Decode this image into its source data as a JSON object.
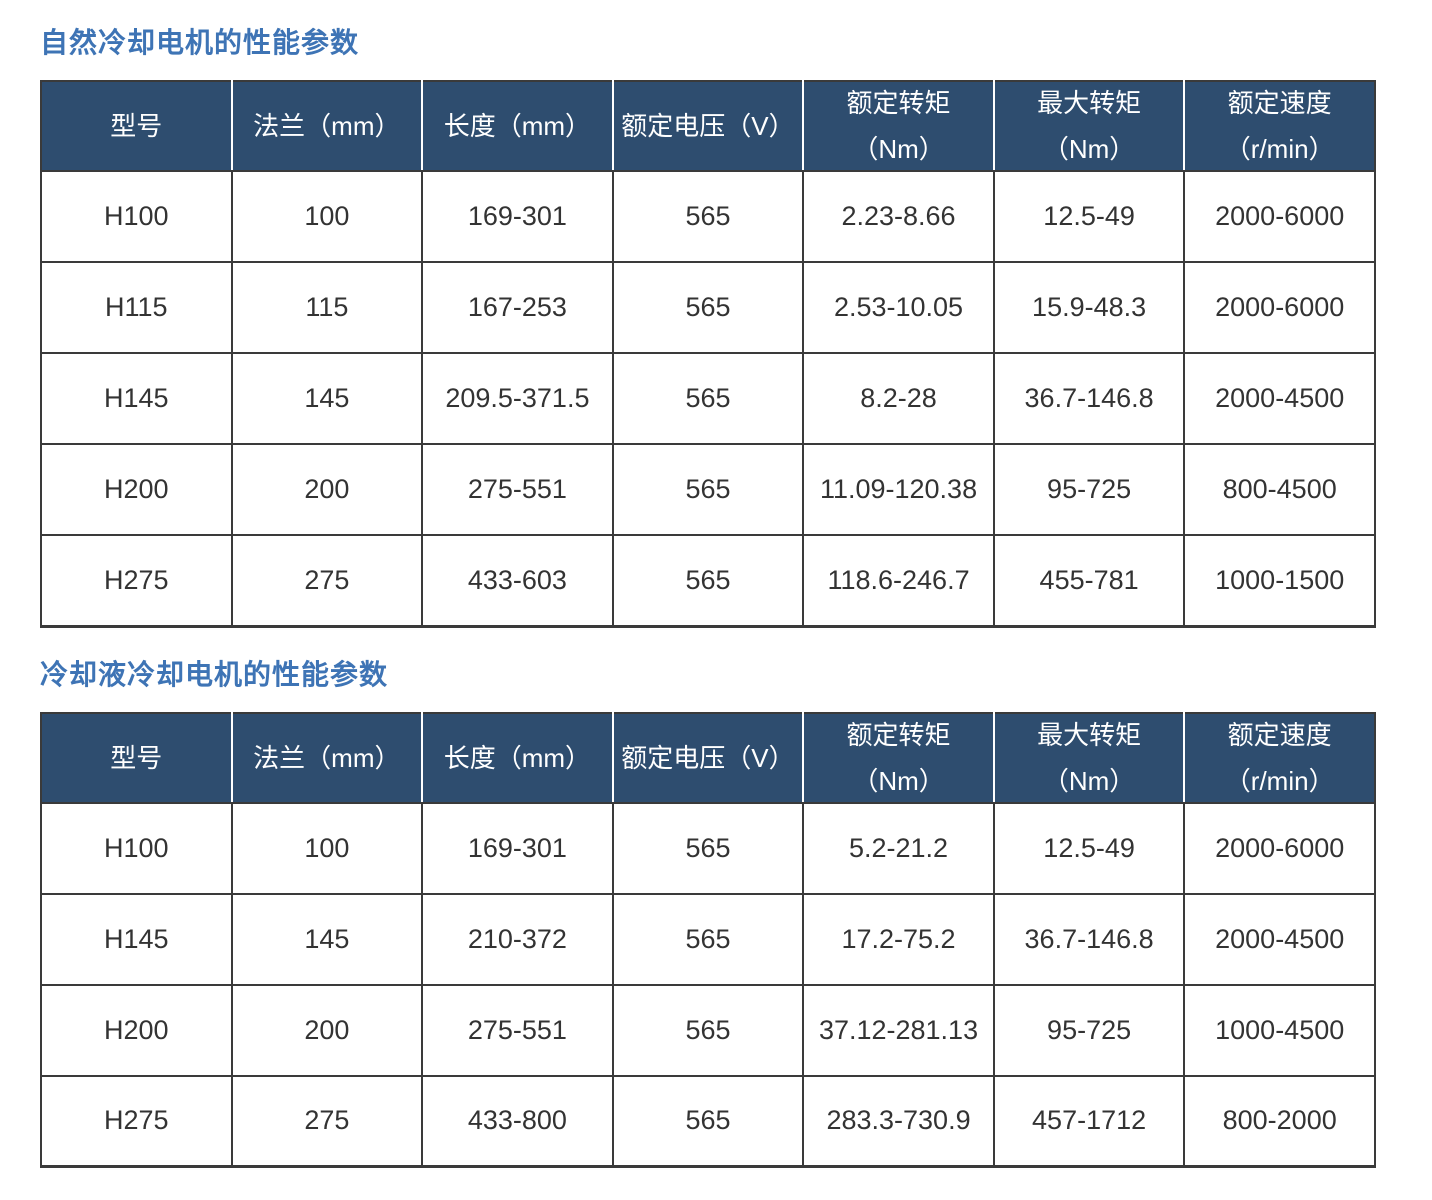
{
  "colors": {
    "header_bg": "#2e4d6f",
    "title_blue": "#3e74b5",
    "grid_border": "#3a3a3a",
    "header_text": "#ffffff",
    "cell_text": "#333333"
  },
  "sections": [
    {
      "title": "自然冷却电机的性能参数",
      "columns": [
        {
          "label": "型号",
          "sub": ""
        },
        {
          "label": "法兰（mm）",
          "sub": ""
        },
        {
          "label": "长度（mm）",
          "sub": ""
        },
        {
          "label": "额定电压（V）",
          "sub": ""
        },
        {
          "label": "额定转矩",
          "sub": "（Nm）"
        },
        {
          "label": "最大转矩",
          "sub": "（Nm）"
        },
        {
          "label": "额定速度",
          "sub": "（r/min）"
        }
      ],
      "rows": [
        [
          "H100",
          "100",
          "169-301",
          "565",
          "2.23-8.66",
          "12.5-49",
          "2000-6000"
        ],
        [
          "H115",
          "115",
          "167-253",
          "565",
          "2.53-10.05",
          "15.9-48.3",
          "2000-6000"
        ],
        [
          "H145",
          "145",
          "209.5-371.5",
          "565",
          "8.2-28",
          "36.7-146.8",
          "2000-4500"
        ],
        [
          "H200",
          "200",
          "275-551",
          "565",
          "11.09-120.38",
          "95-725",
          "800-4500"
        ],
        [
          "H275",
          "275",
          "433-603",
          "565",
          "118.6-246.7",
          "455-781",
          "1000-1500"
        ]
      ]
    },
    {
      "title": "冷却液冷却电机的性能参数",
      "columns": [
        {
          "label": "型号",
          "sub": ""
        },
        {
          "label": "法兰（mm）",
          "sub": ""
        },
        {
          "label": "长度（mm）",
          "sub": ""
        },
        {
          "label": "额定电压（V）",
          "sub": ""
        },
        {
          "label": "额定转矩",
          "sub": "（Nm）"
        },
        {
          "label": "最大转矩",
          "sub": "（Nm）"
        },
        {
          "label": "额定速度",
          "sub": "（r/min）"
        }
      ],
      "rows": [
        [
          "H100",
          "100",
          "169-301",
          "565",
          "5.2-21.2",
          "12.5-49",
          "2000-6000"
        ],
        [
          "H145",
          "145",
          "210-372",
          "565",
          "17.2-75.2",
          "36.7-146.8",
          "2000-4500"
        ],
        [
          "H200",
          "200",
          "275-551",
          "565",
          "37.12-281.13",
          "95-725",
          "1000-4500"
        ],
        [
          "H275",
          "275",
          "433-800",
          "565",
          "283.3-730.9",
          "457-1712",
          "800-2000"
        ]
      ]
    }
  ]
}
